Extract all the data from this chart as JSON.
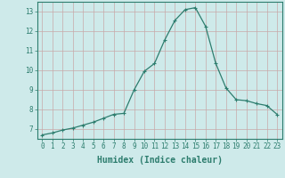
{
  "xlabel": "Humidex (Indice chaleur)",
  "ylabel": "",
  "x_values": [
    0,
    1,
    2,
    3,
    4,
    5,
    6,
    7,
    8,
    9,
    10,
    11,
    12,
    13,
    14,
    15,
    16,
    17,
    18,
    19,
    20,
    21,
    22,
    23
  ],
  "y_values": [
    6.7,
    6.8,
    6.95,
    7.05,
    7.2,
    7.35,
    7.55,
    7.75,
    7.8,
    9.0,
    9.95,
    10.35,
    11.55,
    12.55,
    13.1,
    13.2,
    12.25,
    10.35,
    9.1,
    8.5,
    8.45,
    8.3,
    8.2,
    7.75
  ],
  "line_color": "#2d7d6e",
  "marker": "P",
  "marker_size": 2.5,
  "bg_color": "#ceeaea",
  "grid_color": "#c8a8a8",
  "axis_color": "#2d7d6e",
  "ylim": [
    6.5,
    13.5
  ],
  "xlim": [
    -0.5,
    23.5
  ],
  "yticks": [
    7,
    8,
    9,
    10,
    11,
    12,
    13
  ],
  "xticks": [
    0,
    1,
    2,
    3,
    4,
    5,
    6,
    7,
    8,
    9,
    10,
    11,
    12,
    13,
    14,
    15,
    16,
    17,
    18,
    19,
    20,
    21,
    22,
    23
  ],
  "font_size": 5.5,
  "label_font_size": 7
}
